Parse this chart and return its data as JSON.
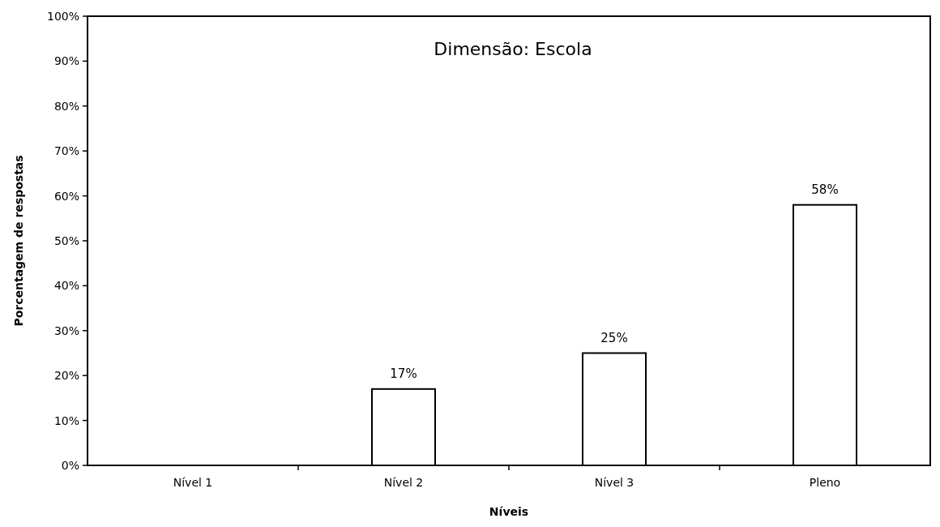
{
  "chart_data": {
    "type": "bar",
    "title": "Dimensão: Escola",
    "xlabel": "Níveis",
    "ylabel": "Porcentagem de respostas",
    "categories": [
      "Nível 1",
      "Nível 2",
      "Nível 3",
      "Pleno"
    ],
    "values": [
      0,
      17,
      25,
      58
    ],
    "color": "#ffffff",
    "value_labels": [
      null,
      "17%",
      "25%",
      "58%"
    ],
    "ylim": [
      0,
      100
    ],
    "yticks": [
      {
        "value": 0,
        "label": "0%"
      },
      {
        "value": 10,
        "label": "10%"
      },
      {
        "value": 20,
        "label": "20%"
      },
      {
        "value": 30,
        "label": "30%"
      },
      {
        "value": 40,
        "label": "40%"
      },
      {
        "value": 50,
        "label": "50%"
      },
      {
        "value": 60,
        "label": "60%"
      },
      {
        "value": 70,
        "label": "70%"
      },
      {
        "value": 80,
        "label": "80%"
      },
      {
        "value": 90,
        "label": "90%"
      },
      {
        "value": 100,
        "label": "100%"
      }
    ],
    "grid": false
  }
}
